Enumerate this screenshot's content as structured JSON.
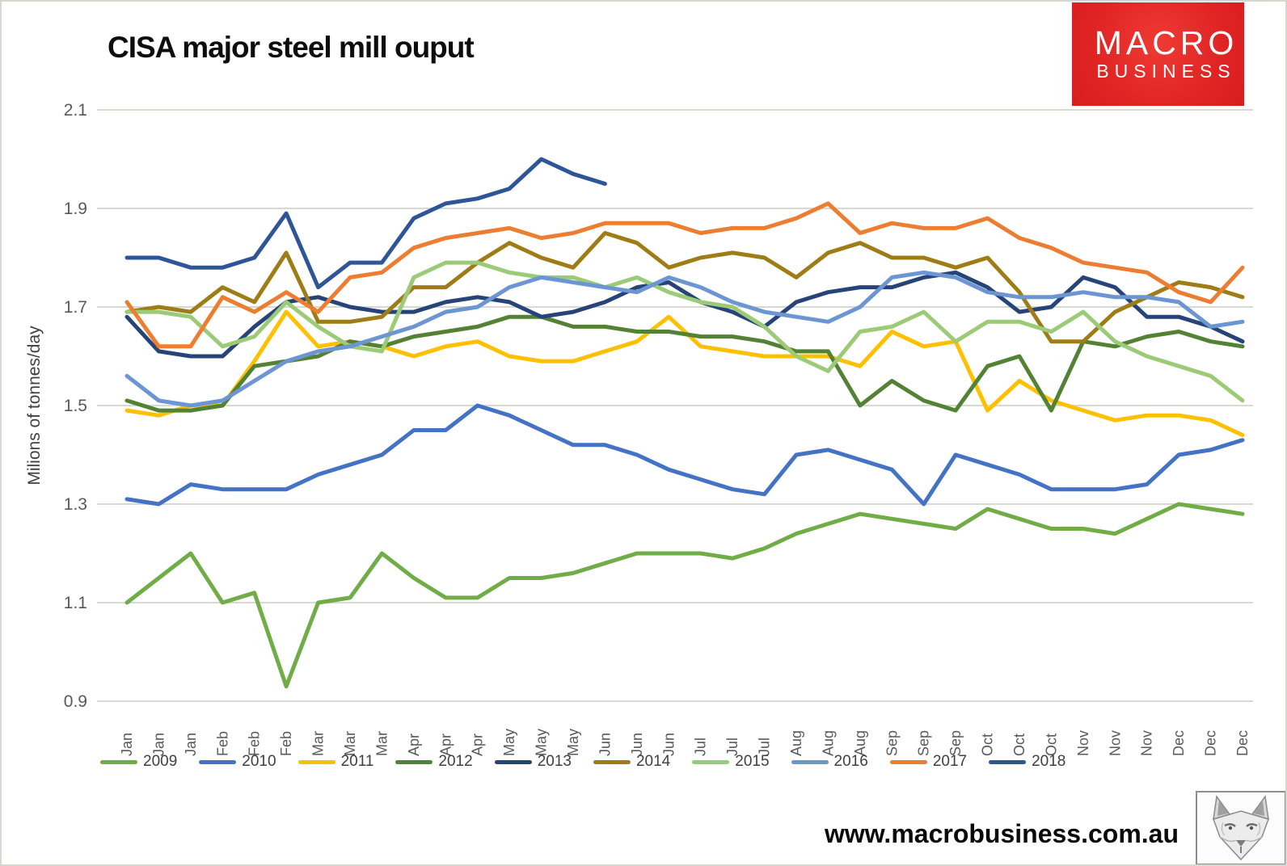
{
  "page": {
    "website": "www.macrobusiness.com.au"
  },
  "logo": {
    "line1": "MACRO",
    "line2": "BUSINESS",
    "bg_color": "#e02424",
    "text_color": "#ffffff"
  },
  "chart_data": {
    "type": "line",
    "title": "CISA major steel mill ouput",
    "ylabel": "Milions of tonnes/day",
    "xlabel": "",
    "ylim": [
      0.9,
      2.1
    ],
    "yticks": [
      2.1,
      1.9,
      1.7,
      1.5,
      1.3,
      1.1,
      0.9
    ],
    "grid": "horizontal",
    "gridline_color": "#d6dad2",
    "axis_text_color": "#595959",
    "legend_position": "bottom",
    "x_labels": [
      "Jan",
      "Jan",
      "Jan",
      "Feb",
      "Feb",
      "Feb",
      "Mar",
      "Mar",
      "Mar",
      "Apr",
      "Apr",
      "Apr",
      "May",
      "May",
      "May",
      "Jun",
      "Jun",
      "Jun",
      "Jul",
      "Jul",
      "Jul",
      "Aug",
      "Aug",
      "Aug",
      "Sep",
      "Sep",
      "Sep",
      "Oct",
      "Oct",
      "Oct",
      "Nov",
      "Nov",
      "Nov",
      "Dec",
      "Dec",
      "Dec"
    ],
    "series": [
      {
        "name": "2009",
        "color": "#70ad47",
        "values": [
          1.1,
          1.15,
          1.2,
          1.1,
          1.12,
          0.93,
          1.1,
          1.11,
          1.2,
          1.15,
          1.11,
          1.11,
          1.15,
          1.15,
          1.16,
          1.18,
          1.2,
          1.2,
          1.2,
          1.19,
          1.21,
          1.24,
          1.26,
          1.28,
          1.27,
          1.26,
          1.25,
          1.29,
          1.27,
          1.25,
          1.25,
          1.24,
          1.27,
          1.3,
          1.29,
          1.28
        ]
      },
      {
        "name": "2010",
        "color": "#4472c4",
        "values": [
          1.31,
          1.3,
          1.34,
          1.33,
          1.33,
          1.33,
          1.36,
          1.38,
          1.4,
          1.45,
          1.45,
          1.5,
          1.48,
          1.45,
          1.42,
          1.42,
          1.4,
          1.37,
          1.35,
          1.33,
          1.32,
          1.4,
          1.41,
          1.39,
          1.37,
          1.3,
          1.4,
          1.38,
          1.36,
          1.33,
          1.33,
          1.33,
          1.34,
          1.4,
          1.41,
          1.43
        ]
      },
      {
        "name": "2011",
        "color": "#ffc000",
        "values": [
          1.49,
          1.48,
          1.5,
          1.5,
          1.59,
          1.69,
          1.62,
          1.63,
          1.62,
          1.6,
          1.62,
          1.63,
          1.6,
          1.59,
          1.59,
          1.61,
          1.63,
          1.68,
          1.62,
          1.61,
          1.6,
          1.6,
          1.6,
          1.58,
          1.65,
          1.62,
          1.63,
          1.49,
          1.55,
          1.51,
          1.49,
          1.47,
          1.48,
          1.48,
          1.47,
          1.44
        ]
      },
      {
        "name": "2012",
        "color": "#548235",
        "values": [
          1.51,
          1.49,
          1.49,
          1.5,
          1.58,
          1.59,
          1.6,
          1.63,
          1.62,
          1.64,
          1.65,
          1.66,
          1.68,
          1.68,
          1.66,
          1.66,
          1.65,
          1.65,
          1.64,
          1.64,
          1.63,
          1.61,
          1.61,
          1.5,
          1.55,
          1.51,
          1.49,
          1.58,
          1.6,
          1.49,
          1.63,
          1.62,
          1.64,
          1.65,
          1.63,
          1.62
        ]
      },
      {
        "name": "2013",
        "color": "#264478",
        "values": [
          1.68,
          1.61,
          1.6,
          1.6,
          1.66,
          1.71,
          1.72,
          1.7,
          1.69,
          1.69,
          1.71,
          1.72,
          1.71,
          1.68,
          1.69,
          1.71,
          1.74,
          1.75,
          1.71,
          1.69,
          1.66,
          1.71,
          1.73,
          1.74,
          1.74,
          1.76,
          1.77,
          1.74,
          1.69,
          1.7,
          1.76,
          1.74,
          1.68,
          1.68,
          1.66,
          1.63
        ]
      },
      {
        "name": "2014",
        "color": "#9e7c16",
        "values": [
          1.69,
          1.7,
          1.69,
          1.74,
          1.71,
          1.81,
          1.67,
          1.67,
          1.68,
          1.74,
          1.74,
          1.79,
          1.83,
          1.8,
          1.78,
          1.85,
          1.83,
          1.78,
          1.8,
          1.81,
          1.8,
          1.76,
          1.81,
          1.83,
          1.8,
          1.8,
          1.78,
          1.8,
          1.73,
          1.63,
          1.63,
          1.69,
          1.72,
          1.75,
          1.74,
          1.72
        ]
      },
      {
        "name": "2015",
        "color": "#9bcb77",
        "values": [
          1.69,
          1.69,
          1.68,
          1.62,
          1.64,
          1.71,
          1.66,
          1.62,
          1.61,
          1.76,
          1.79,
          1.79,
          1.77,
          1.76,
          1.76,
          1.74,
          1.76,
          1.73,
          1.71,
          1.7,
          1.66,
          1.6,
          1.57,
          1.65,
          1.66,
          1.69,
          1.63,
          1.67,
          1.67,
          1.65,
          1.69,
          1.63,
          1.6,
          1.58,
          1.56,
          1.51
        ]
      },
      {
        "name": "2016",
        "color": "#6b96d3",
        "values": [
          1.56,
          1.51,
          1.5,
          1.51,
          1.55,
          1.59,
          1.61,
          1.62,
          1.64,
          1.66,
          1.69,
          1.7,
          1.74,
          1.76,
          1.75,
          1.74,
          1.73,
          1.76,
          1.74,
          1.71,
          1.69,
          1.68,
          1.67,
          1.7,
          1.76,
          1.77,
          1.76,
          1.73,
          1.72,
          1.72,
          1.73,
          1.72,
          1.72,
          1.71,
          1.66,
          1.67
        ]
      },
      {
        "name": "2017",
        "color": "#ed7d31",
        "values": [
          1.71,
          1.62,
          1.62,
          1.72,
          1.69,
          1.73,
          1.69,
          1.76,
          1.77,
          1.82,
          1.84,
          1.85,
          1.86,
          1.84,
          1.85,
          1.87,
          1.87,
          1.87,
          1.85,
          1.86,
          1.86,
          1.88,
          1.91,
          1.85,
          1.87,
          1.86,
          1.86,
          1.88,
          1.84,
          1.82,
          1.79,
          1.78,
          1.77,
          1.73,
          1.71,
          1.78
        ]
      },
      {
        "name": "2018",
        "color": "#2e5597",
        "values": [
          1.8,
          1.8,
          1.78,
          1.78,
          1.8,
          1.89,
          1.74,
          1.79,
          1.79,
          1.88,
          1.91,
          1.92,
          1.94,
          2.0,
          1.97,
          1.95
        ]
      }
    ]
  }
}
